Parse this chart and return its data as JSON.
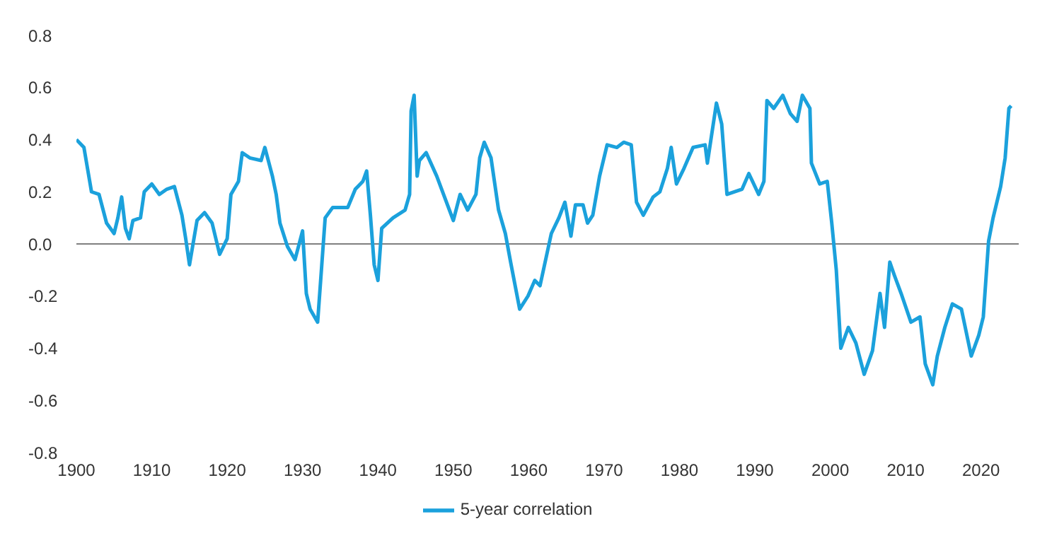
{
  "chart_data": {
    "type": "line",
    "x": [
      1900,
      1901,
      1902,
      1903,
      1904,
      1905,
      1905.5,
      1906,
      1906.5,
      1907,
      1907.5,
      1908.5,
      1909,
      1910,
      1911,
      1912,
      1913,
      1914,
      1914.5,
      1915,
      1916,
      1917,
      1918,
      1919,
      1920,
      1920.5,
      1921.5,
      1922,
      1923,
      1924.5,
      1925,
      1926,
      1926.5,
      1927,
      1928,
      1929,
      1930,
      1930.5,
      1931,
      1932,
      1932.5,
      1933,
      1934,
      1936,
      1937,
      1938,
      1938.5,
      1939,
      1939.5,
      1940,
      1940.5,
      1942,
      1943.6,
      1944.2,
      1944.4,
      1944.8,
      1945.2,
      1945.5,
      1946.4,
      1947.8,
      1948.7,
      1950,
      1950.9,
      1951.9,
      1953,
      1953.5,
      1954.1,
      1955,
      1956,
      1956.9,
      1957.6,
      1958.8,
      1959.9,
      1960.8,
      1961.5,
      1962.1,
      1963,
      1964,
      1964.8,
      1965.6,
      1966.2,
      1967.2,
      1967.8,
      1968.5,
      1969.4,
      1970.4,
      1971.7,
      1972.6,
      1973.6,
      1974.3,
      1975.2,
      1976.5,
      1977.4,
      1978.4,
      1978.9,
      1979.6,
      1980.6,
      1981.8,
      1983.4,
      1983.7,
      1984.9,
      1985.6,
      1986.3,
      1988.3,
      1989.2,
      1990.5,
      1991.2,
      1991.6,
      1992.5,
      1993.7,
      1994.7,
      1995.6,
      1996.3,
      1997.3,
      1997.5,
      1998.6,
      1999.6,
      2000.2,
      2000.8,
      2001.4,
      2002.4,
      2003.4,
      2004.5,
      2005.6,
      2006.6,
      2007.2,
      2007.9,
      2008.5,
      2009.4,
      2010.7,
      2011.9,
      2012.6,
      2013.6,
      2014.2,
      2015.2,
      2016.2,
      2017.4,
      2018.7,
      2019.7,
      2020.3,
      2021,
      2021.6,
      2022.6,
      2023.2,
      2023.7,
      2024
    ],
    "series": [
      {
        "name": "5-year correlation",
        "color": "#1ba1dc",
        "values": [
          0.4,
          0.37,
          0.2,
          0.19,
          0.08,
          0.04,
          0.1,
          0.18,
          0.06,
          0.02,
          0.09,
          0.1,
          0.2,
          0.23,
          0.19,
          0.21,
          0.22,
          0.11,
          0.02,
          -0.08,
          0.09,
          0.12,
          0.08,
          -0.04,
          0.02,
          0.19,
          0.24,
          0.35,
          0.33,
          0.32,
          0.37,
          0.26,
          0.19,
          0.08,
          -0.01,
          -0.06,
          0.05,
          -0.19,
          -0.25,
          -0.3,
          -0.1,
          0.1,
          0.14,
          0.14,
          0.21,
          0.24,
          0.28,
          0.11,
          -0.08,
          -0.14,
          0.06,
          0.1,
          0.13,
          0.19,
          0.51,
          0.57,
          0.26,
          0.32,
          0.35,
          0.26,
          0.19,
          0.09,
          0.19,
          0.13,
          0.19,
          0.33,
          0.39,
          0.33,
          0.13,
          0.04,
          -0.07,
          -0.25,
          -0.2,
          -0.14,
          -0.16,
          -0.08,
          0.04,
          0.1,
          0.16,
          0.03,
          0.15,
          0.15,
          0.08,
          0.11,
          0.26,
          0.38,
          0.37,
          0.39,
          0.38,
          0.16,
          0.11,
          0.18,
          0.2,
          0.29,
          0.37,
          0.23,
          0.29,
          0.37,
          0.38,
          0.31,
          0.54,
          0.46,
          0.19,
          0.21,
          0.27,
          0.19,
          0.24,
          0.55,
          0.52,
          0.57,
          0.5,
          0.47,
          0.57,
          0.52,
          0.31,
          0.23,
          0.24,
          0.08,
          -0.1,
          -0.4,
          -0.32,
          -0.38,
          -0.5,
          -0.41,
          -0.19,
          -0.32,
          -0.07,
          -0.12,
          -0.19,
          -0.3,
          -0.28,
          -0.46,
          -0.54,
          -0.43,
          -0.32,
          -0.23,
          -0.25,
          -0.43,
          -0.35,
          -0.28,
          0.01,
          0.1,
          0.22,
          0.33,
          0.52,
          0.53
        ]
      }
    ],
    "xlim": [
      1900,
      2025
    ],
    "xticks": [
      1900,
      1910,
      1920,
      1930,
      1940,
      1950,
      1960,
      1970,
      1980,
      1990,
      2000,
      2010,
      2020
    ],
    "ylim": [
      -0.8,
      0.8
    ],
    "yticks": [
      -0.8,
      -0.6,
      -0.4,
      -0.2,
      {
        "value": 0,
        "label": "0.0"
      },
      0.2,
      0.4,
      0.6,
      0.8
    ],
    "ref_lines": [
      {
        "axis": "y",
        "value": 0,
        "color": "#808080"
      }
    ],
    "grid": false,
    "legend": "bottom",
    "marker": "none",
    "line_style": "solid"
  }
}
